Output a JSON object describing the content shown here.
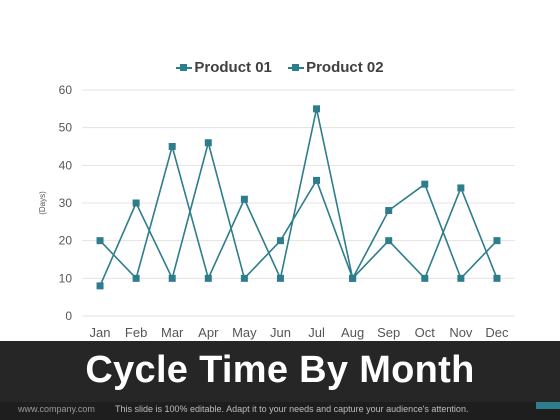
{
  "chart_data": {
    "type": "line",
    "categories": [
      "Jan",
      "Feb",
      "Mar",
      "Apr",
      "May",
      "Jun",
      "Jul",
      "Aug",
      "Sep",
      "Oct",
      "Nov",
      "Dec"
    ],
    "series": [
      {
        "name": "Product 01",
        "values": [
          8,
          30,
          10,
          46,
          10,
          20,
          36,
          10,
          28,
          35,
          10,
          20
        ]
      },
      {
        "name": "Product 02",
        "values": [
          20,
          10,
          45,
          10,
          31,
          10,
          55,
          10,
          20,
          10,
          34,
          10
        ]
      }
    ],
    "title": "Cycle Time By Month",
    "xlabel": "",
    "ylabel": "(Days)",
    "ylim": [
      0,
      60
    ],
    "yticks": [
      0,
      10,
      20,
      30,
      40,
      50,
      60
    ],
    "grid": true,
    "legend": "top",
    "color": "#2e7d8c"
  },
  "footer": {
    "website": "www.company.com",
    "note": "This slide is 100% editable. Adapt it to your needs and capture your audience's attention."
  }
}
